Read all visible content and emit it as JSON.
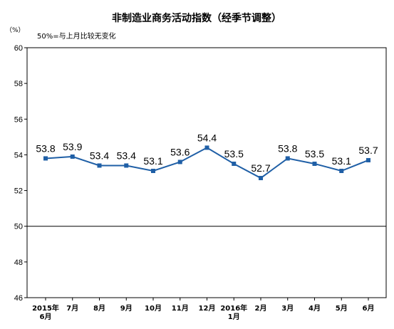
{
  "chart_data": {
    "type": "line",
    "title": "非制造业商务活动指数（经季节调整）",
    "unit": "（%）",
    "note": "50%=与上月比较无变化",
    "ylim": [
      46,
      60
    ],
    "yticks": [
      60,
      58,
      56,
      54,
      52,
      50,
      48,
      46
    ],
    "reference_line": 50,
    "grid": false,
    "legend": "none",
    "categories": [
      [
        "2015年",
        "6月"
      ],
      [
        "7月"
      ],
      [
        "8月"
      ],
      [
        "9月"
      ],
      [
        "10月"
      ],
      [
        "11月"
      ],
      [
        "12月"
      ],
      [
        "2016年",
        "1月"
      ],
      [
        "2月"
      ],
      [
        "3月"
      ],
      [
        "4月"
      ],
      [
        "5月"
      ],
      [
        "6月"
      ]
    ],
    "values": [
      53.8,
      53.9,
      53.4,
      53.4,
      53.1,
      53.6,
      54.4,
      53.5,
      52.7,
      53.8,
      53.5,
      53.1,
      53.7
    ],
    "data_labels": [
      "53.8",
      "53.9",
      "53.4",
      "53.4",
      "53.1",
      "53.6",
      "54.4",
      "53.5",
      "52.7",
      "53.8",
      "53.5",
      "53.1",
      "53.7"
    ],
    "colors": {
      "line": "#1f5fa6",
      "axis": "#000000"
    }
  }
}
